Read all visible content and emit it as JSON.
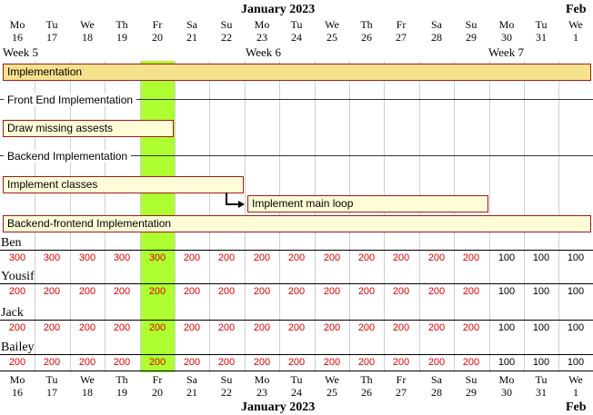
{
  "header": {
    "month": "January 2023",
    "next_month": "Feb",
    "weeks": [
      "Week 5",
      "Week 6",
      "Week 7"
    ],
    "days": [
      {
        "name": "Mo",
        "num": "16"
      },
      {
        "name": "Tu",
        "num": "17"
      },
      {
        "name": "We",
        "num": "18"
      },
      {
        "name": "Th",
        "num": "19"
      },
      {
        "name": "Fr",
        "num": "20"
      },
      {
        "name": "Sa",
        "num": "21"
      },
      {
        "name": "Su",
        "num": "22"
      },
      {
        "name": "Mo",
        "num": "23"
      },
      {
        "name": "Tu",
        "num": "24"
      },
      {
        "name": "We",
        "num": "25"
      },
      {
        "name": "Th",
        "num": "26"
      },
      {
        "name": "Fr",
        "num": "27"
      },
      {
        "name": "Sa",
        "num": "28"
      },
      {
        "name": "Su",
        "num": "29"
      },
      {
        "name": "Mo",
        "num": "30"
      },
      {
        "name": "Tu",
        "num": "31"
      },
      {
        "name": "We",
        "num": "1"
      }
    ],
    "today_index": 4
  },
  "tasks": [
    {
      "label": "Implementation",
      "kind": "summary",
      "start": 0,
      "end": 17
    },
    {
      "label": "Front End Implementation",
      "kind": "group",
      "start": 0,
      "end": 17
    },
    {
      "label": "Draw missing assests",
      "kind": "task",
      "start": 0,
      "end": 5
    },
    {
      "label": "Backend Implementation",
      "kind": "group",
      "start": 0,
      "end": 17
    },
    {
      "label": "Implement classes",
      "kind": "task",
      "start": 0,
      "end": 7
    },
    {
      "label": "Implement main loop",
      "kind": "task",
      "start": 7,
      "end": 14
    },
    {
      "label": "Backend-frontend Implementation",
      "kind": "task",
      "start": 0,
      "end": 17
    }
  ],
  "resources": [
    {
      "name": "Ben",
      "loads": [
        "300",
        "300",
        "300",
        "300",
        "300",
        "200",
        "200",
        "200",
        "200",
        "200",
        "200",
        "200",
        "200",
        "200",
        "100",
        "100",
        "100"
      ]
    },
    {
      "name": "Yousif",
      "loads": [
        "200",
        "200",
        "200",
        "200",
        "200",
        "200",
        "200",
        "200",
        "200",
        "200",
        "200",
        "200",
        "200",
        "200",
        "100",
        "100",
        "100"
      ]
    },
    {
      "name": "Jack",
      "loads": [
        "200",
        "200",
        "200",
        "200",
        "200",
        "200",
        "200",
        "200",
        "200",
        "200",
        "200",
        "200",
        "200",
        "200",
        "100",
        "100",
        "100"
      ]
    },
    {
      "name": "Bailey",
      "loads": [
        "200",
        "200",
        "200",
        "200",
        "200",
        "200",
        "200",
        "200",
        "200",
        "200",
        "200",
        "200",
        "200",
        "200",
        "100",
        "100",
        "100"
      ]
    }
  ],
  "colors": {
    "today": "#adff2f",
    "overload": "#e00000",
    "normal_load": "#000000",
    "task_fill": "#fffdd8",
    "summary_fill": "#f5e28c",
    "task_border": "#9b1c1c"
  }
}
